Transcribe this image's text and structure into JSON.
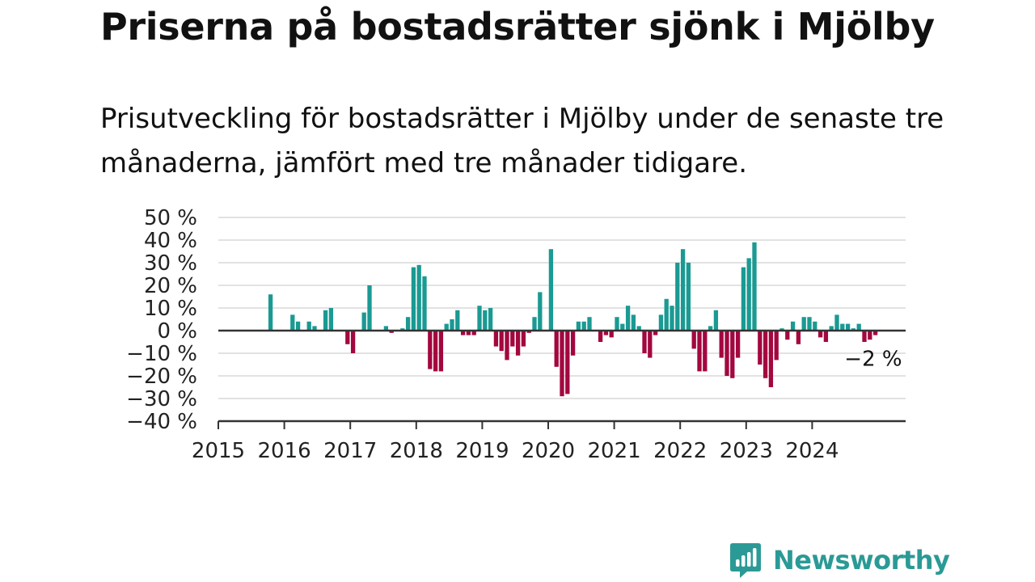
{
  "header": {
    "title": "Priserna på bostadsrätter sjönk i Mjölby",
    "subtitle": "Prisutveckling för bostadsrätter i Mjölby under de senaste tre månaderna, jämfört med tre månader tidigare."
  },
  "brand": {
    "name": "Newsworthy",
    "icon": "newsworthy-logo-icon",
    "color": "#2b9a96"
  },
  "chart_data": {
    "type": "bar",
    "title": "",
    "xlabel": "",
    "ylabel": "",
    "x_start": "2015-01",
    "x_end": "2025-06",
    "xticks": [
      "2015",
      "2016",
      "2017",
      "2018",
      "2019",
      "2020",
      "2021",
      "2022",
      "2023",
      "2024"
    ],
    "yticks": [
      "50 %",
      "40 %",
      "30 %",
      "20 %",
      "10 %",
      "0 %",
      "−10 %",
      "−20 %",
      "−30 %",
      "−40 %"
    ],
    "ylim": [
      -40,
      50
    ],
    "grid": true,
    "colors": {
      "positive": "#1a9a93",
      "negative": "#a3073f"
    },
    "end_label": "−2 %",
    "series": [
      {
        "values": [
          {
            "x": "2015-10",
            "y": 16
          },
          {
            "x": "2016-02",
            "y": 7
          },
          {
            "x": "2016-03",
            "y": 4
          },
          {
            "x": "2016-05",
            "y": 4
          },
          {
            "x": "2016-06",
            "y": 2
          },
          {
            "x": "2016-08",
            "y": 9
          },
          {
            "x": "2016-09",
            "y": 10
          },
          {
            "x": "2016-12",
            "y": -6
          },
          {
            "x": "2017-01",
            "y": -10
          },
          {
            "x": "2017-03",
            "y": 8
          },
          {
            "x": "2017-04",
            "y": 20
          },
          {
            "x": "2017-07",
            "y": 2
          },
          {
            "x": "2017-08",
            "y": -1
          },
          {
            "x": "2017-10",
            "y": 1
          },
          {
            "x": "2017-11",
            "y": 6
          },
          {
            "x": "2017-12",
            "y": 28
          },
          {
            "x": "2018-01",
            "y": 29
          },
          {
            "x": "2018-02",
            "y": 24
          },
          {
            "x": "2018-03",
            "y": -17
          },
          {
            "x": "2018-04",
            "y": -18
          },
          {
            "x": "2018-05",
            "y": -18
          },
          {
            "x": "2018-06",
            "y": 3
          },
          {
            "x": "2018-07",
            "y": 5
          },
          {
            "x": "2018-08",
            "y": 9
          },
          {
            "x": "2018-09",
            "y": -2
          },
          {
            "x": "2018-10",
            "y": -2
          },
          {
            "x": "2018-11",
            "y": -2
          },
          {
            "x": "2018-12",
            "y": 11
          },
          {
            "x": "2019-01",
            "y": 9
          },
          {
            "x": "2019-02",
            "y": 10
          },
          {
            "x": "2019-03",
            "y": -7
          },
          {
            "x": "2019-04",
            "y": -9
          },
          {
            "x": "2019-05",
            "y": -13
          },
          {
            "x": "2019-06",
            "y": -7
          },
          {
            "x": "2019-07",
            "y": -11
          },
          {
            "x": "2019-08",
            "y": -7
          },
          {
            "x": "2019-09",
            "y": -1
          },
          {
            "x": "2019-10",
            "y": 6
          },
          {
            "x": "2019-11",
            "y": 17
          },
          {
            "x": "2020-01",
            "y": 36
          },
          {
            "x": "2020-02",
            "y": -16
          },
          {
            "x": "2020-03",
            "y": -29
          },
          {
            "x": "2020-04",
            "y": -28
          },
          {
            "x": "2020-05",
            "y": -11
          },
          {
            "x": "2020-06",
            "y": 4
          },
          {
            "x": "2020-07",
            "y": 4
          },
          {
            "x": "2020-08",
            "y": 6
          },
          {
            "x": "2020-10",
            "y": -5
          },
          {
            "x": "2020-11",
            "y": -2
          },
          {
            "x": "2020-12",
            "y": -3
          },
          {
            "x": "2021-01",
            "y": 6
          },
          {
            "x": "2021-02",
            "y": 3
          },
          {
            "x": "2021-03",
            "y": 11
          },
          {
            "x": "2021-04",
            "y": 7
          },
          {
            "x": "2021-05",
            "y": 2
          },
          {
            "x": "2021-06",
            "y": -10
          },
          {
            "x": "2021-07",
            "y": -12
          },
          {
            "x": "2021-08",
            "y": -2
          },
          {
            "x": "2021-09",
            "y": 7
          },
          {
            "x": "2021-10",
            "y": 14
          },
          {
            "x": "2021-11",
            "y": 11
          },
          {
            "x": "2021-12",
            "y": 30
          },
          {
            "x": "2022-01",
            "y": 36
          },
          {
            "x": "2022-02",
            "y": 30
          },
          {
            "x": "2022-03",
            "y": -8
          },
          {
            "x": "2022-04",
            "y": -18
          },
          {
            "x": "2022-05",
            "y": -18
          },
          {
            "x": "2022-06",
            "y": 2
          },
          {
            "x": "2022-07",
            "y": 9
          },
          {
            "x": "2022-08",
            "y": -12
          },
          {
            "x": "2022-09",
            "y": -20
          },
          {
            "x": "2022-10",
            "y": -21
          },
          {
            "x": "2022-11",
            "y": -12
          },
          {
            "x": "2022-12",
            "y": 28
          },
          {
            "x": "2023-01",
            "y": 32
          },
          {
            "x": "2023-02",
            "y": 39
          },
          {
            "x": "2023-03",
            "y": -15
          },
          {
            "x": "2023-04",
            "y": -21
          },
          {
            "x": "2023-05",
            "y": -25
          },
          {
            "x": "2023-06",
            "y": -13
          },
          {
            "x": "2023-07",
            "y": 1
          },
          {
            "x": "2023-08",
            "y": -4
          },
          {
            "x": "2023-09",
            "y": 4
          },
          {
            "x": "2023-10",
            "y": -6
          },
          {
            "x": "2023-11",
            "y": 6
          },
          {
            "x": "2023-12",
            "y": 6
          },
          {
            "x": "2024-01",
            "y": 4
          },
          {
            "x": "2024-02",
            "y": -3
          },
          {
            "x": "2024-03",
            "y": -5
          },
          {
            "x": "2024-04",
            "y": 2
          },
          {
            "x": "2024-05",
            "y": 7
          },
          {
            "x": "2024-06",
            "y": 3
          },
          {
            "x": "2024-07",
            "y": 3
          },
          {
            "x": "2024-08",
            "y": 1
          },
          {
            "x": "2024-09",
            "y": 3
          },
          {
            "x": "2024-10",
            "y": -5
          },
          {
            "x": "2024-11",
            "y": -4
          },
          {
            "x": "2024-12",
            "y": -2
          }
        ]
      }
    ]
  }
}
